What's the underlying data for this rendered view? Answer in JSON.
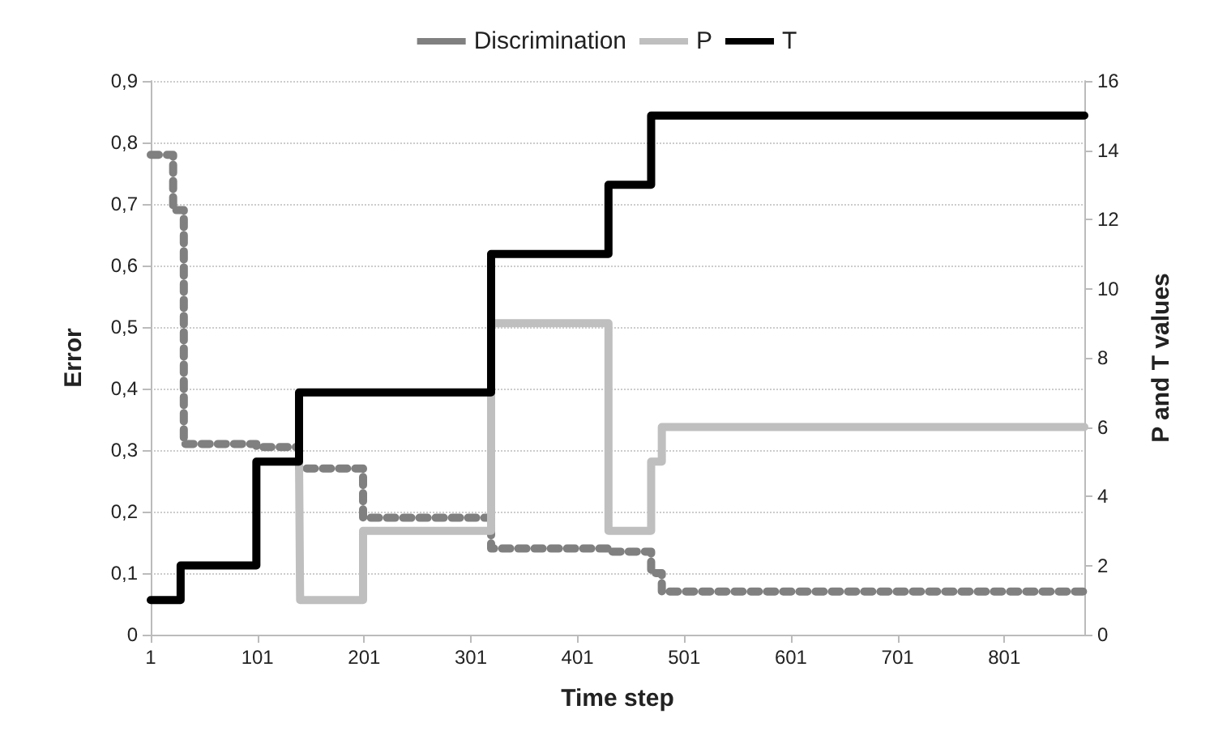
{
  "chart_data": {
    "type": "step",
    "xlabel": "Time step",
    "ylabel": "Error",
    "y2label": "P and T values",
    "xlim": [
      1,
      876
    ],
    "xticks": [
      1,
      101,
      201,
      301,
      401,
      501,
      601,
      701,
      801
    ],
    "ylim": [
      0,
      0.9
    ],
    "yticks": [
      0,
      {
        "value": 0.1,
        "label": "0,1"
      },
      {
        "value": 0.2,
        "label": "0,2"
      },
      {
        "value": 0.3,
        "label": "0,3"
      },
      {
        "value": 0.4,
        "label": "0,4"
      },
      {
        "value": 0.5,
        "label": "0,5"
      },
      {
        "value": 0.6,
        "label": "0,6"
      },
      {
        "value": 0.7,
        "label": "0,7"
      },
      {
        "value": 0.8,
        "label": "0,8"
      },
      {
        "value": 0.9,
        "label": "0,9"
      }
    ],
    "y2lim": [
      0,
      16
    ],
    "y2ticks": [
      0,
      2,
      4,
      6,
      8,
      10,
      12,
      14,
      16
    ],
    "grid": "y",
    "legend": "top",
    "marker": "none",
    "series": [
      {
        "name": "Discrimination",
        "color": "#808080",
        "line_style": "dotted",
        "x": [
          1,
          22,
          32,
          100,
          140,
          200,
          320,
          430,
          470,
          480,
          876
        ],
        "values": [
          0.78,
          0.69,
          0.31,
          0.305,
          0.27,
          0.19,
          0.14,
          0.135,
          0.1,
          0.07,
          0.07
        ]
      },
      {
        "name": "P",
        "color": "#bfbfbf",
        "line_style": "solid",
        "axis": "y2",
        "x": [
          140,
          141,
          200,
          320,
          430,
          470,
          480,
          876
        ],
        "values": [
          5,
          1,
          3,
          9,
          3,
          5,
          6,
          6
        ]
      },
      {
        "name": "T",
        "color": "#000000",
        "line_style": "solid",
        "axis": "y2",
        "x": [
          1,
          29,
          100,
          140,
          320,
          430,
          470,
          876
        ],
        "values": [
          1,
          2,
          5,
          7,
          11,
          13,
          15,
          15
        ]
      }
    ]
  }
}
